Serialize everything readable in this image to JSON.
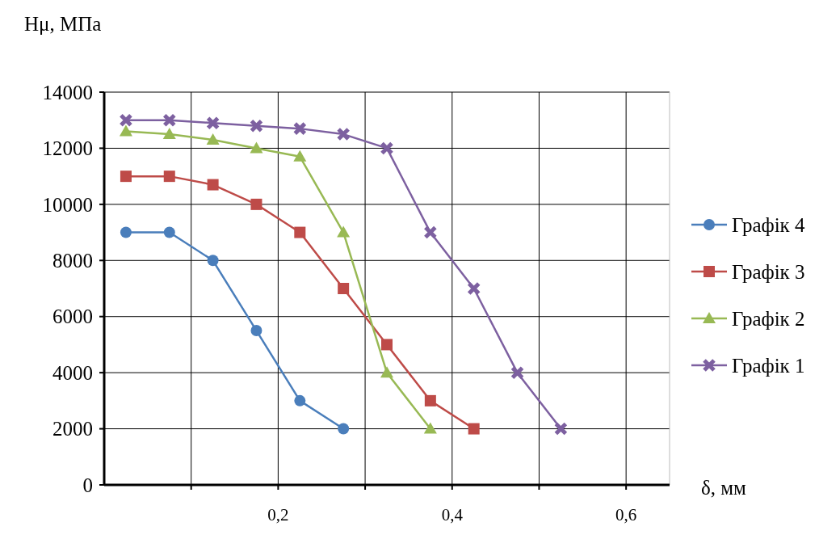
{
  "chart_data": {
    "type": "line",
    "ylabel": "Hμ, МПа",
    "xlabel": "δ, мм",
    "xlim": [
      0,
      0.65
    ],
    "xticks": [
      {
        "value": 0.1,
        "label": null
      },
      {
        "value": 0.2,
        "label": "0,2"
      },
      {
        "value": 0.3,
        "label": null
      },
      {
        "value": 0.4,
        "label": "0,4"
      },
      {
        "value": 0.5,
        "label": null
      },
      {
        "value": 0.6,
        "label": "0,6"
      }
    ],
    "ylim": [
      0,
      14000
    ],
    "yticks": [
      0,
      2000,
      4000,
      6000,
      8000,
      10000,
      12000,
      14000
    ],
    "grid": true,
    "legend": "right",
    "series": [
      {
        "name": "Графік 4",
        "color": "#4a7ebb",
        "marker": "circle",
        "x": [
          0.025,
          0.075,
          0.125,
          0.175,
          0.225,
          0.275
        ],
        "values": [
          9000,
          9000,
          8000,
          5500,
          3000,
          2000
        ]
      },
      {
        "name": "Графік 3",
        "color": "#be4b48",
        "marker": "square",
        "x": [
          0.025,
          0.075,
          0.125,
          0.175,
          0.225,
          0.275,
          0.325,
          0.375,
          0.425
        ],
        "values": [
          11000,
          11000,
          10700,
          10000,
          9000,
          7000,
          5000,
          3000,
          2000
        ]
      },
      {
        "name": "Графік 2",
        "color": "#98b954",
        "marker": "triangle",
        "x": [
          0.025,
          0.075,
          0.125,
          0.175,
          0.225,
          0.275,
          0.325,
          0.375
        ],
        "values": [
          12600,
          12500,
          12300,
          12000,
          11700,
          9000,
          4000,
          2000
        ]
      },
      {
        "name": "Графік 1",
        "color": "#7d60a0",
        "marker": "cross",
        "x": [
          0.025,
          0.075,
          0.125,
          0.175,
          0.225,
          0.275,
          0.325,
          0.375,
          0.425,
          0.475,
          0.525
        ],
        "values": [
          13000,
          13000,
          12900,
          12800,
          12700,
          12500,
          12000,
          9000,
          7000,
          4000,
          2000
        ]
      }
    ]
  }
}
